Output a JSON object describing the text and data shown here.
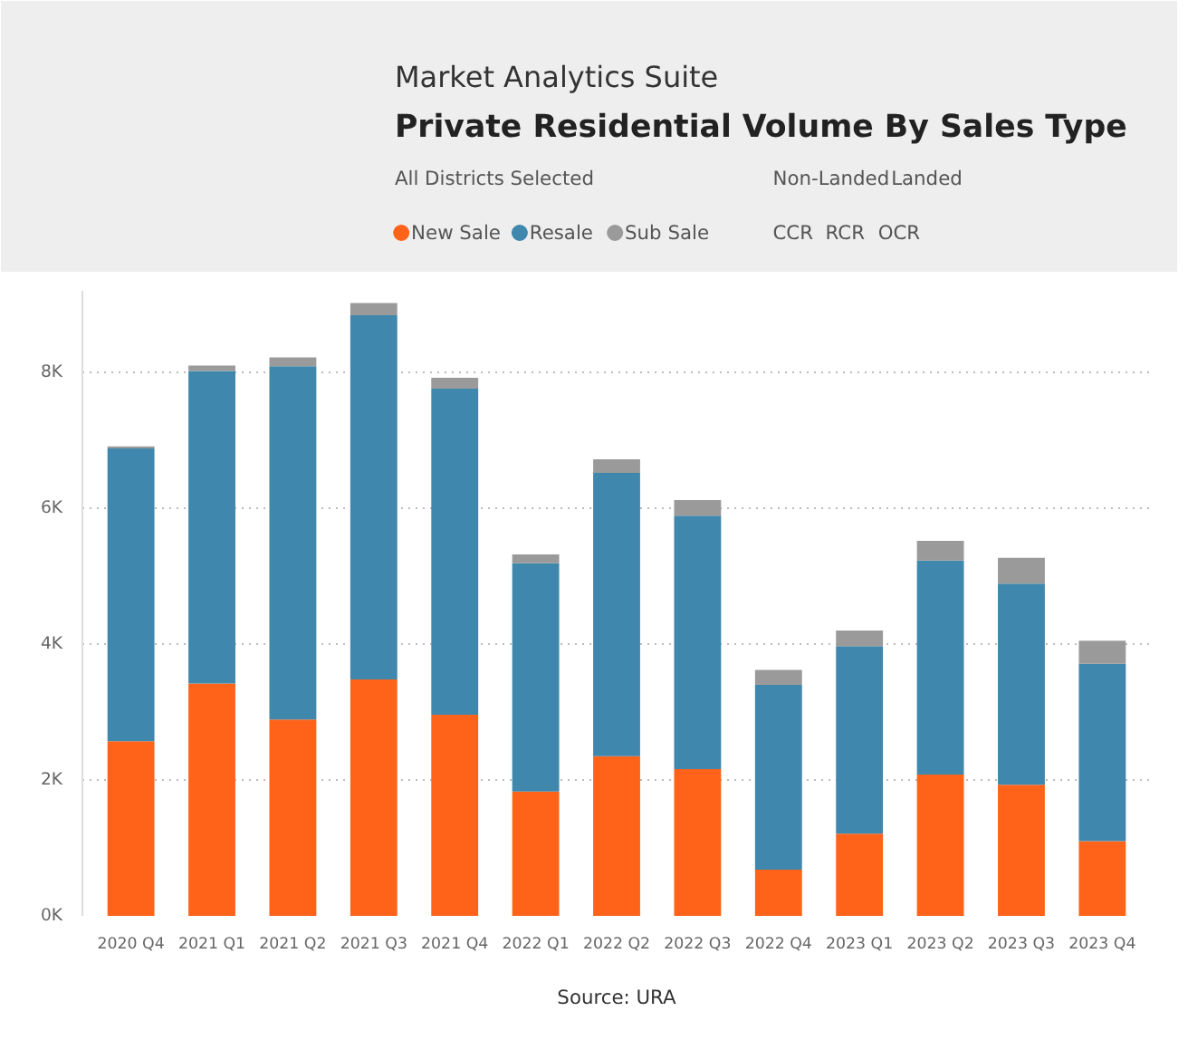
{
  "chart_data": {
    "type": "bar",
    "stacked": true,
    "title": "Private Residential Volume By Sales Type",
    "subtitle": "Market Analytics Suite",
    "categories": [
      "2020 Q4",
      "2021 Q1",
      "2021 Q2",
      "2021 Q3",
      "2021 Q4",
      "2022 Q1",
      "2022 Q2",
      "2022 Q3",
      "2022 Q4",
      "2023 Q1",
      "2023 Q2",
      "2023 Q3",
      "2023 Q4"
    ],
    "series": [
      {
        "name": "New Sale",
        "color": "#ff6319",
        "values": [
          2570,
          3420,
          2890,
          3480,
          2960,
          1830,
          2350,
          2160,
          680,
          1210,
          2080,
          1930,
          1100
        ]
      },
      {
        "name": "Resale",
        "color": "#3f87ad",
        "values": [
          4310,
          4600,
          5200,
          5360,
          4800,
          3360,
          4170,
          3730,
          2720,
          2760,
          3150,
          2960,
          2610
        ]
      },
      {
        "name": "Sub Sale",
        "color": "#9a9a9a",
        "values": [
          30,
          80,
          130,
          180,
          160,
          130,
          200,
          230,
          220,
          230,
          290,
          380,
          340
        ]
      }
    ],
    "ylim": [
      0,
      9200
    ],
    "yticks": [
      {
        "value": 0,
        "label": "0K"
      },
      {
        "value": 2000,
        "label": "2K"
      },
      {
        "value": 4000,
        "label": "4K"
      },
      {
        "value": 6000,
        "label": "6K"
      },
      {
        "value": 8000,
        "label": "8K"
      }
    ],
    "grid": "y",
    "legend": "top left",
    "annotations": [
      "All Districts Selected",
      "Non-Landed",
      "Landed",
      "CCR",
      "RCR",
      "OCR",
      "Source: URA"
    ]
  }
}
